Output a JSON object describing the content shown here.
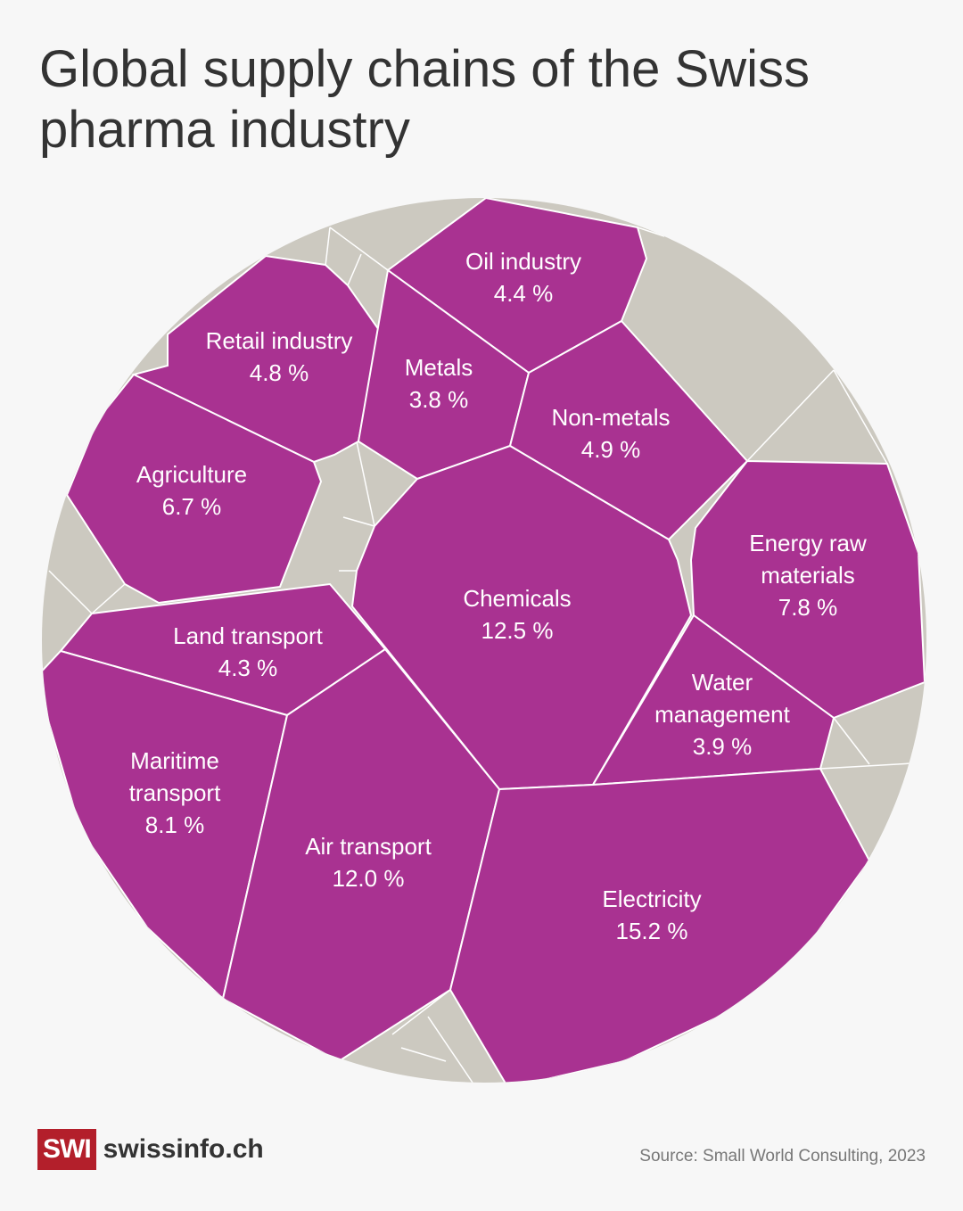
{
  "title": "Global supply chains of the Swiss pharma industry",
  "source": "Source: Small World Consulting, 2023",
  "logo": {
    "mark": "SWI",
    "site": "swissinfo.ch"
  },
  "colors": {
    "highlight": "#a93291",
    "other": "#ccc9c0",
    "border": "#ffffff"
  },
  "chart_data": {
    "type": "voronoi-treemap",
    "title": "Global supply chains of the Swiss pharma industry",
    "unit": "%",
    "categories": [
      {
        "name": "Oil industry",
        "value": 4.4,
        "label": "4.4 %"
      },
      {
        "name": "Retail industry",
        "value": 4.8,
        "label": "4.8 %"
      },
      {
        "name": "Metals",
        "value": 3.8,
        "label": "3.8 %"
      },
      {
        "name": "Non-metals",
        "value": 4.9,
        "label": "4.9 %"
      },
      {
        "name": "Agriculture",
        "value": 6.7,
        "label": "6.7 %"
      },
      {
        "name": "Energy raw materials",
        "value": 7.8,
        "label": "7.8 %"
      },
      {
        "name": "Chemicals",
        "value": 12.5,
        "label": "12.5 %"
      },
      {
        "name": "Land transport",
        "value": 4.3,
        "label": "4.3 %"
      },
      {
        "name": "Water management",
        "value": 3.9,
        "label": "3.9 %"
      },
      {
        "name": "Maritime transport",
        "value": 8.1,
        "label": "8.1 %"
      },
      {
        "name": "Air transport",
        "value": 12.0,
        "label": "12.0 %"
      },
      {
        "name": "Electricity",
        "value": 15.2,
        "label": "15.2 %"
      }
    ]
  }
}
